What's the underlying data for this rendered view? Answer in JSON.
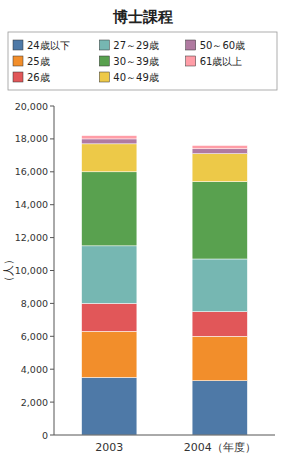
{
  "chart_data": {
    "type": "bar",
    "stacked": true,
    "title": "博士課程",
    "ylabel": "（人）",
    "categories": [
      "2003",
      "2004（年度）"
    ],
    "series": [
      {
        "name": "24歳以下",
        "color": "#4e79a7",
        "values": [
          3500,
          3300
        ]
      },
      {
        "name": "25歳",
        "color": "#f28e2b",
        "values": [
          2800,
          2700
        ]
      },
      {
        "name": "26歳",
        "color": "#e15759",
        "values": [
          1700,
          1500
        ]
      },
      {
        "name": "27～29歳",
        "color": "#76b7b2",
        "values": [
          3500,
          3200
        ]
      },
      {
        "name": "30～39歳",
        "color": "#59a14f",
        "values": [
          4500,
          4700
        ]
      },
      {
        "name": "40～49歳",
        "color": "#edc948",
        "values": [
          1700,
          1700
        ]
      },
      {
        "name": "50～60歳",
        "color": "#b07aa1",
        "values": [
          300,
          300
        ]
      },
      {
        "name": "61歳以上",
        "color": "#ff9da7",
        "values": [
          200,
          200
        ]
      }
    ],
    "ylim": [
      0,
      20000
    ],
    "yticks": [
      0,
      {
        "value": 2000,
        "label": "2,000"
      },
      {
        "value": 4000,
        "label": "4,000"
      },
      {
        "value": 6000,
        "label": "6,000"
      },
      {
        "value": 8000,
        "label": "8,000"
      },
      {
        "value": 10000,
        "label": "10,000"
      },
      {
        "value": 12000,
        "label": "12,000"
      },
      {
        "value": 14000,
        "label": "14,000"
      },
      {
        "value": 16000,
        "label": "16,000"
      },
      {
        "value": 18000,
        "label": "18,000"
      },
      {
        "value": 20000,
        "label": "20,000"
      }
    ],
    "legend": "top",
    "grid": false
  }
}
